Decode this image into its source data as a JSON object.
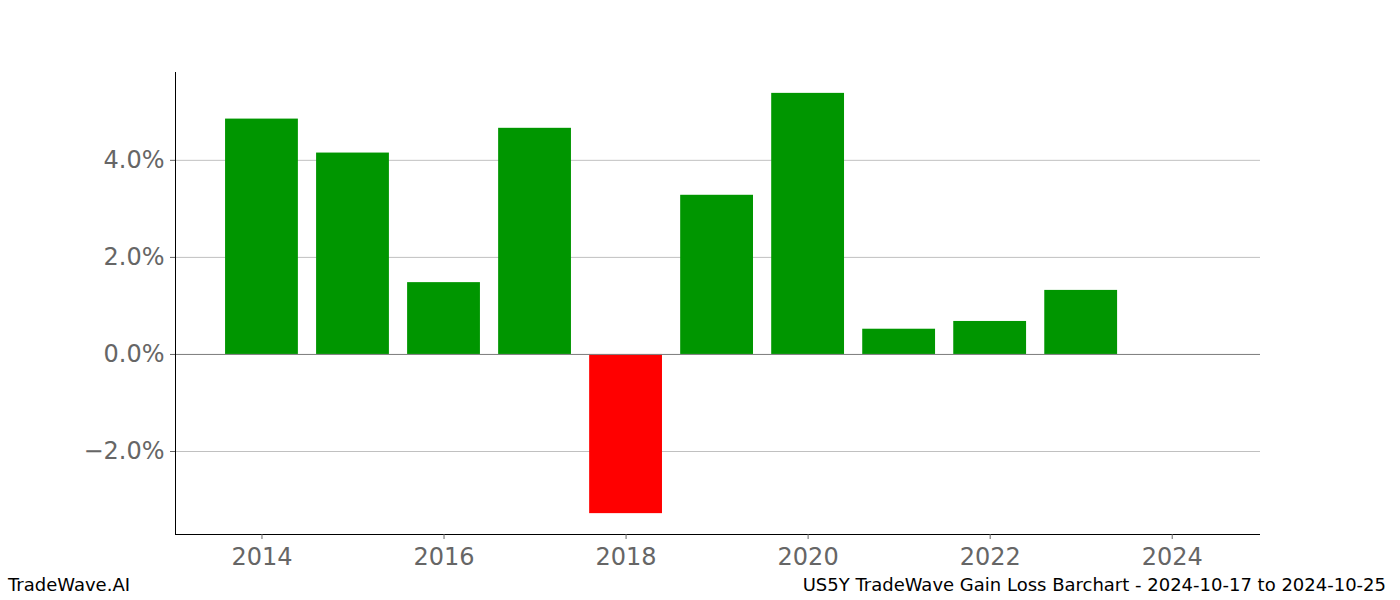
{
  "chart_data": {
    "type": "bar",
    "title": "US5Y TradeWave Gain Loss Barchart - 2024-10-17 to 2024-10-25",
    "annotations": [
      "TradeWave.AI"
    ],
    "x": [
      2014,
      2015,
      2016,
      2017,
      2018,
      2019,
      2020,
      2021,
      2022,
      2023
    ],
    "values": [
      4.85,
      4.15,
      1.48,
      4.66,
      -3.28,
      3.28,
      5.38,
      0.52,
      0.68,
      1.32
    ],
    "colors": [
      "#009600",
      "#009600",
      "#009600",
      "#009600",
      "#ff0000",
      "#009600",
      "#009600",
      "#009600",
      "#009600",
      "#009600"
    ],
    "xlim": [
      2013.05,
      2024.97
    ],
    "xticks": [
      2014,
      2016,
      2018,
      2020,
      2022,
      2024
    ],
    "ylim": [
      -3.71,
      5.81
    ],
    "yticks": [
      {
        "value": -2,
        "label": "−2.0%"
      },
      {
        "value": 0,
        "label": "0.0%"
      },
      {
        "value": 2,
        "label": "2.0%"
      },
      {
        "value": 4,
        "label": "4.0%"
      }
    ],
    "grid": true
  }
}
